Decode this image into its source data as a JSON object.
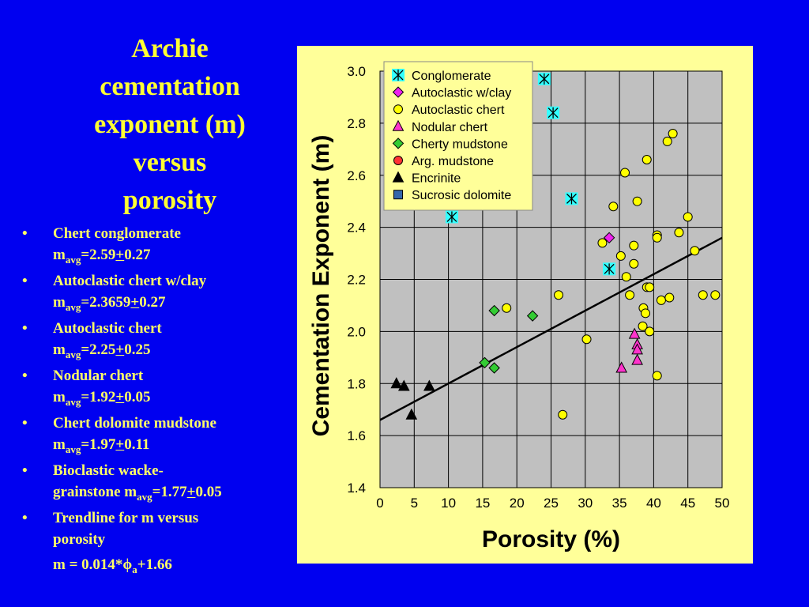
{
  "title_lines": [
    "Archie",
    "cementation",
    "exponent (m)",
    "versus",
    "porosity"
  ],
  "bullet_char": "•",
  "bullets": [
    {
      "label": "Chert conglomerate",
      "pre": "m",
      "sub": "avg",
      "eq": "=2.59",
      "pm": "+",
      "post": "0.27"
    },
    {
      "label": "Autoclastic chert w/clay",
      "pre": "m",
      "sub": "avg",
      "eq": "=2.3659",
      "pm": "+",
      "post": "0.27"
    },
    {
      "label": "Autoclastic chert",
      "pre": "m",
      "sub": "avg",
      "eq": "=2.25",
      "pm": "+",
      "post": "0.25"
    },
    {
      "label": "Nodular chert",
      "pre": "m",
      "sub": "avg",
      "eq": "=1.92",
      "pm": "+",
      "post": "0.05"
    },
    {
      "label": "Chert dolomite mudstone",
      "pre": "m",
      "sub": "avg",
      "eq": "=1.97",
      "pm": "+",
      "post": "0.11"
    },
    {
      "label": "Bioclastic wacke-",
      "pre": "grainstone m",
      "sub": "avg",
      "eq": "=1.77",
      "pm": "+",
      "post": "0.05"
    },
    {
      "label": "Trendline for m versus",
      "pre": "porosity",
      "sub": "",
      "eq": "",
      "pm": "",
      "post": ""
    }
  ],
  "formula": {
    "pre": "m = 0.014*",
    "phi": "ϕ",
    "sub": "a",
    "post": "+1.66"
  },
  "chart_data": {
    "type": "scatter",
    "xlabel": "Porosity (%)",
    "ylabel": "Cementation Exponent (m)",
    "xlim": [
      0,
      50
    ],
    "ylim": [
      1.4,
      3.0
    ],
    "xticks": [
      0,
      5,
      10,
      15,
      20,
      25,
      30,
      35,
      40,
      45,
      50
    ],
    "yticks": [
      1.4,
      1.6,
      1.8,
      2.0,
      2.2,
      2.4,
      2.6,
      2.8,
      3.0
    ],
    "xtick_labels": [
      "0",
      "5",
      "10",
      "15",
      "20",
      "25",
      "30",
      "35",
      "40",
      "45",
      "50"
    ],
    "ytick_labels": [
      "1.4",
      "1.6",
      "1.8",
      "2.0",
      "2.2",
      "2.4",
      "2.6",
      "2.8",
      "3.0"
    ],
    "grid": true,
    "plot_background": "#c0c0c0",
    "panel_background": "#ffff99",
    "legend_position": "top-left",
    "trendline": {
      "slope": 0.014,
      "intercept": 1.66,
      "x_range": [
        0,
        50
      ],
      "color": "#000000"
    },
    "series": [
      {
        "name": "Conglomerate",
        "marker": "asterisk",
        "color": "#33ffff",
        "points": [
          [
            24,
            2.97
          ],
          [
            25.3,
            2.84
          ],
          [
            28,
            2.51
          ],
          [
            10.5,
            2.44
          ],
          [
            33.5,
            2.24
          ]
        ]
      },
      {
        "name": "Autoclastic w/clay",
        "marker": "diamond",
        "color": "#ee22ee",
        "points": [
          [
            33.5,
            2.36
          ]
        ]
      },
      {
        "name": "Autoclastic chert",
        "marker": "circle",
        "color": "#ffff00",
        "points": [
          [
            42.8,
            2.76
          ],
          [
            42,
            2.73
          ],
          [
            39,
            2.66
          ],
          [
            35.8,
            2.61
          ],
          [
            34.1,
            2.48
          ],
          [
            37.6,
            2.5
          ],
          [
            45,
            2.44
          ],
          [
            43.7,
            2.38
          ],
          [
            40.5,
            2.37
          ],
          [
            40.5,
            2.36
          ],
          [
            32.5,
            2.34
          ],
          [
            37.1,
            2.33
          ],
          [
            35.2,
            2.29
          ],
          [
            46,
            2.31
          ],
          [
            37.1,
            2.26
          ],
          [
            36,
            2.21
          ],
          [
            39,
            2.17
          ],
          [
            39.4,
            2.17
          ],
          [
            36.5,
            2.14
          ],
          [
            26.1,
            2.14
          ],
          [
            41.1,
            2.12
          ],
          [
            42.3,
            2.13
          ],
          [
            47.2,
            2.14
          ],
          [
            49,
            2.14
          ],
          [
            38.5,
            2.09
          ],
          [
            38.8,
            2.07
          ],
          [
            18.5,
            2.09
          ],
          [
            38.4,
            2.02
          ],
          [
            39.4,
            2.0
          ],
          [
            30.2,
            1.97
          ],
          [
            40.5,
            1.83
          ],
          [
            26.7,
            1.68
          ]
        ]
      },
      {
        "name": "Nodular chert",
        "marker": "triangle",
        "color": "#ff33cc",
        "points": [
          [
            37.2,
            1.99
          ],
          [
            37.6,
            1.95
          ],
          [
            37.6,
            1.93
          ],
          [
            37.6,
            1.89
          ],
          [
            35.3,
            1.86
          ]
        ]
      },
      {
        "name": "Cherty mudstone",
        "marker": "diamond",
        "color": "#33cc33",
        "points": [
          [
            16.7,
            2.08
          ],
          [
            22.3,
            2.06
          ],
          [
            15.3,
            1.88
          ],
          [
            16.7,
            1.86
          ]
        ]
      },
      {
        "name": "Arg. mudstone",
        "marker": "circle",
        "color": "#ff3333",
        "points": []
      },
      {
        "name": "Encrinite",
        "marker": "triangle",
        "color": "#000000",
        "points": [
          [
            2.4,
            1.8
          ],
          [
            3.5,
            1.79
          ],
          [
            7.2,
            1.79
          ],
          [
            4.6,
            1.68
          ]
        ]
      },
      {
        "name": "Sucrosic dolomite",
        "marker": "square",
        "color": "#3366aa",
        "points": []
      }
    ]
  }
}
